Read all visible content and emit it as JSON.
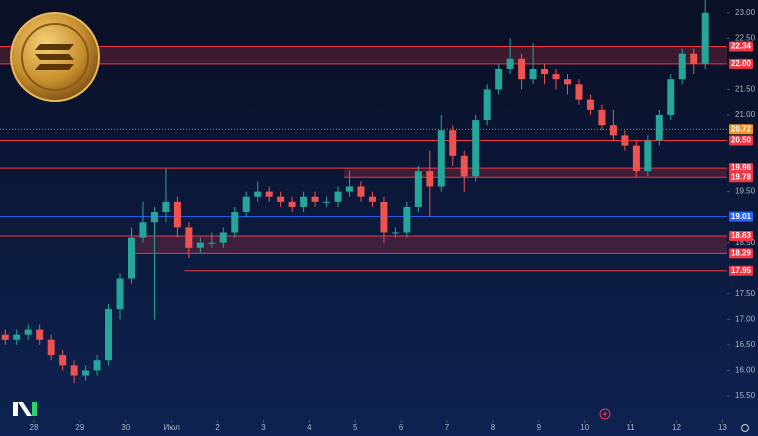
{
  "chart_data": {
    "type": "candlestick",
    "ylim": [
      15.03,
      23.25
    ],
    "xlim": [
      -0.74,
      15.1
    ],
    "yticks": [
      {
        "value": 15.5,
        "label": "15.50"
      },
      {
        "value": 16,
        "label": "16.00"
      },
      {
        "value": 16.5,
        "label": "16.50"
      },
      {
        "value": 17,
        "label": "17.00"
      },
      {
        "value": 17.5,
        "label": "17.50"
      },
      {
        "value": 18.5,
        "label": "18.50"
      },
      {
        "value": 19.5,
        "label": "19.50"
      },
      {
        "value": 21,
        "label": "21.00"
      },
      {
        "value": 21.5,
        "label": "21.50"
      },
      {
        "value": 22.5,
        "label": "22.50"
      },
      {
        "value": 23,
        "label": "23.00"
      }
    ],
    "xticks": [
      {
        "value": 0,
        "label": "28"
      },
      {
        "value": 1,
        "label": "29"
      },
      {
        "value": 2,
        "label": "30"
      },
      {
        "value": 3,
        "label": "Июл"
      },
      {
        "value": 4,
        "label": "2"
      },
      {
        "value": 5,
        "label": "3"
      },
      {
        "value": 6,
        "label": "4"
      },
      {
        "value": 7,
        "label": "5"
      },
      {
        "value": 8,
        "label": "6"
      },
      {
        "value": 9,
        "label": "7"
      },
      {
        "value": 10,
        "label": "8"
      },
      {
        "value": 11,
        "label": "9"
      },
      {
        "value": 12,
        "label": "10"
      },
      {
        "value": 13,
        "label": "11"
      },
      {
        "value": 14,
        "label": "12"
      },
      {
        "value": 15,
        "label": "13"
      }
    ],
    "up_color": "#26a69a",
    "down_color": "#ef5350",
    "x": [
      -0.625,
      -0.375,
      -0.125,
      0.125,
      0.375,
      0.625,
      0.875,
      1.125,
      1.375,
      1.625,
      1.875,
      2.125,
      2.375,
      2.625,
      2.875,
      3.125,
      3.375,
      3.625,
      3.875,
      4.125,
      4.375,
      4.625,
      4.875,
      5.125,
      5.375,
      5.625,
      5.875,
      6.125,
      6.375,
      6.625,
      6.875,
      7.125,
      7.375,
      7.625,
      7.875,
      8.125,
      8.375,
      8.625,
      8.875,
      9.125,
      9.375,
      9.625,
      9.875,
      10.125,
      10.375,
      10.625,
      10.875,
      11.125,
      11.375,
      11.625,
      11.875,
      12.125,
      12.375,
      12.625,
      12.875,
      13.125,
      13.375,
      13.625,
      13.875,
      14.125,
      14.375,
      14.625
    ],
    "open": [
      16.7,
      16.6,
      16.7,
      16.8,
      16.6,
      16.3,
      16.1,
      15.9,
      16.0,
      16.2,
      17.2,
      17.8,
      18.6,
      18.9,
      19.1,
      19.3,
      18.8,
      18.4,
      18.5,
      18.5,
      18.7,
      19.1,
      19.4,
      19.5,
      19.4,
      19.3,
      19.2,
      19.4,
      19.3,
      19.3,
      19.5,
      19.6,
      19.4,
      19.3,
      18.7,
      18.7,
      19.2,
      19.9,
      19.6,
      20.7,
      20.2,
      19.8,
      20.9,
      21.5,
      21.9,
      22.1,
      21.7,
      21.9,
      21.8,
      21.7,
      21.6,
      21.3,
      21.1,
      20.8,
      20.6,
      20.4,
      19.9,
      20.5,
      21.0,
      21.7,
      22.2,
      22.0
    ],
    "high": [
      16.8,
      16.8,
      16.9,
      16.9,
      16.7,
      16.4,
      16.2,
      16.1,
      16.3,
      17.3,
      17.9,
      18.8,
      19.3,
      19.2,
      19.95,
      19.4,
      18.9,
      18.6,
      18.7,
      18.8,
      19.2,
      19.5,
      19.7,
      19.6,
      19.5,
      19.4,
      19.5,
      19.5,
      19.4,
      19.6,
      19.9,
      19.7,
      19.5,
      19.4,
      18.8,
      19.3,
      20.0,
      20.3,
      21.0,
      20.8,
      20.3,
      21.0,
      21.6,
      22.0,
      22.5,
      22.2,
      22.4,
      22.0,
      21.9,
      21.8,
      21.7,
      21.4,
      21.2,
      21.1,
      20.7,
      20.5,
      20.6,
      21.1,
      21.8,
      22.3,
      22.3,
      23.25
    ],
    "low": [
      16.5,
      16.5,
      16.6,
      16.5,
      16.2,
      16.0,
      15.75,
      15.8,
      15.9,
      16.1,
      17.0,
      17.7,
      18.5,
      17.0,
      18.9,
      18.6,
      18.2,
      18.3,
      18.4,
      18.4,
      18.6,
      19.0,
      19.3,
      19.3,
      19.2,
      19.1,
      19.1,
      19.2,
      19.2,
      19.2,
      19.4,
      19.3,
      19.2,
      18.5,
      18.6,
      18.6,
      19.1,
      19.0,
      19.5,
      20.0,
      19.5,
      19.7,
      20.8,
      21.4,
      21.8,
      21.5,
      21.6,
      21.6,
      21.5,
      21.4,
      21.2,
      21.0,
      20.7,
      20.5,
      20.3,
      19.78,
      19.8,
      20.4,
      20.9,
      21.6,
      21.8,
      21.9
    ],
    "close": [
      16.6,
      16.7,
      16.8,
      16.6,
      16.3,
      16.1,
      15.9,
      16.0,
      16.2,
      17.2,
      17.8,
      18.6,
      18.9,
      19.1,
      19.3,
      18.8,
      18.4,
      18.5,
      18.5,
      18.7,
      19.1,
      19.4,
      19.5,
      19.4,
      19.3,
      19.2,
      19.4,
      19.3,
      19.3,
      19.5,
      19.6,
      19.4,
      19.3,
      18.7,
      18.7,
      19.2,
      19.9,
      19.6,
      20.7,
      20.2,
      19.8,
      20.9,
      21.5,
      21.9,
      22.1,
      21.7,
      21.9,
      21.8,
      21.7,
      21.6,
      21.3,
      21.1,
      20.8,
      20.6,
      20.4,
      19.9,
      20.5,
      21.0,
      21.7,
      22.2,
      22.0,
      23.0
    ],
    "zones": [
      {
        "low": 22.0,
        "high": 22.34,
        "from": -0.74,
        "color": "#f23645"
      },
      {
        "low": 19.78,
        "high": 19.96,
        "from": 6.76,
        "color": "#f23645"
      },
      {
        "low": 18.29,
        "high": 18.63,
        "from": 2.2,
        "color": "#f23645"
      }
    ],
    "levels": [
      {
        "value": 22.34,
        "label": "22.34",
        "color": "#f23645",
        "from": -0.74
      },
      {
        "value": 22.0,
        "label": "22.00",
        "color": "#f23645",
        "from": -0.74
      },
      {
        "value": 20.72,
        "label": "20.72",
        "color": "#f7931a",
        "from": -0.74,
        "dashed": true
      },
      {
        "value": 20.5,
        "label": "20.50",
        "color": "#f23645",
        "from": -0.74
      },
      {
        "value": 19.96,
        "label": "19.96",
        "color": "#f23645",
        "from": -0.74
      },
      {
        "value": 19.78,
        "label": "19.78",
        "color": "#f23645",
        "from": 6.76
      },
      {
        "value": 19.01,
        "label": "19.01",
        "color": "#2962ff",
        "from": -0.74
      },
      {
        "value": 18.63,
        "label": "18.63",
        "color": "#f23645",
        "from": -0.74
      },
      {
        "value": 18.29,
        "label": "18.29",
        "color": "#f23645",
        "from": 2.2
      },
      {
        "value": 17.95,
        "label": "17.95",
        "color": "#f23645",
        "from": 3.28
      }
    ]
  }
}
